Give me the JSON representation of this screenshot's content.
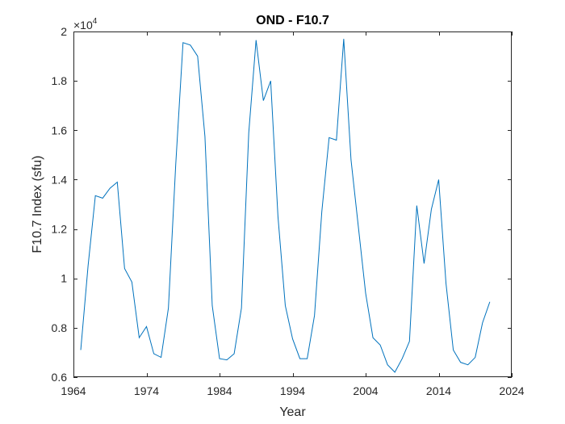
{
  "chart_data": {
    "type": "line",
    "title": "OND - F10.7",
    "xlabel": "Year",
    "ylabel": "F10.7 Index (sfu)",
    "exponent_label": {
      "base": "×10",
      "power": "4"
    },
    "xlim": [
      1964,
      2024
    ],
    "ylim": [
      0.6,
      2.0
    ],
    "x_ticks": [
      1964,
      1974,
      1984,
      1994,
      2004,
      2014,
      2024
    ],
    "y_ticks": [
      0.6,
      0.8,
      1.0,
      1.2,
      1.4,
      1.6,
      1.8,
      2.0
    ],
    "y_tick_labels": [
      "0.6",
      "0.8",
      "1",
      "1.2",
      "1.4",
      "1.6",
      "1.8",
      "2"
    ],
    "grid": false,
    "line_color": "#0072BD",
    "series": [
      {
        "x": [
          1965,
          1966,
          1967,
          1968,
          1969,
          1970,
          1971,
          1972,
          1973,
          1974,
          1975,
          1976,
          1977,
          1978,
          1979,
          1980,
          1981,
          1982,
          1983,
          1984,
          1985,
          1986,
          1987,
          1988,
          1989,
          1990,
          1991,
          1992,
          1993,
          1994,
          1995,
          1996,
          1997,
          1998,
          1999,
          2000,
          2001,
          2002,
          2003,
          2004,
          2005,
          2006,
          2007,
          2008,
          2009,
          2010,
          2011,
          2012,
          2013,
          2014,
          2015,
          2016,
          2017,
          2018,
          2019,
          2020,
          2021
        ],
        "values": [
          0.71,
          1.05,
          1.335,
          1.325,
          1.365,
          1.39,
          1.04,
          0.985,
          0.76,
          0.805,
          0.695,
          0.68,
          0.88,
          1.46,
          1.955,
          1.945,
          1.9,
          1.575,
          0.89,
          0.675,
          0.67,
          0.695,
          0.88,
          1.59,
          1.965,
          1.72,
          1.8,
          1.25,
          0.89,
          0.755,
          0.675,
          0.675,
          0.85,
          1.27,
          1.57,
          1.56,
          1.97,
          1.48,
          1.21,
          0.94,
          0.76,
          0.73,
          0.65,
          0.62,
          0.675,
          0.745,
          1.295,
          1.06,
          1.28,
          1.4,
          0.98,
          0.71,
          0.66,
          0.65,
          0.68,
          0.82,
          0.905
        ]
      }
    ]
  }
}
